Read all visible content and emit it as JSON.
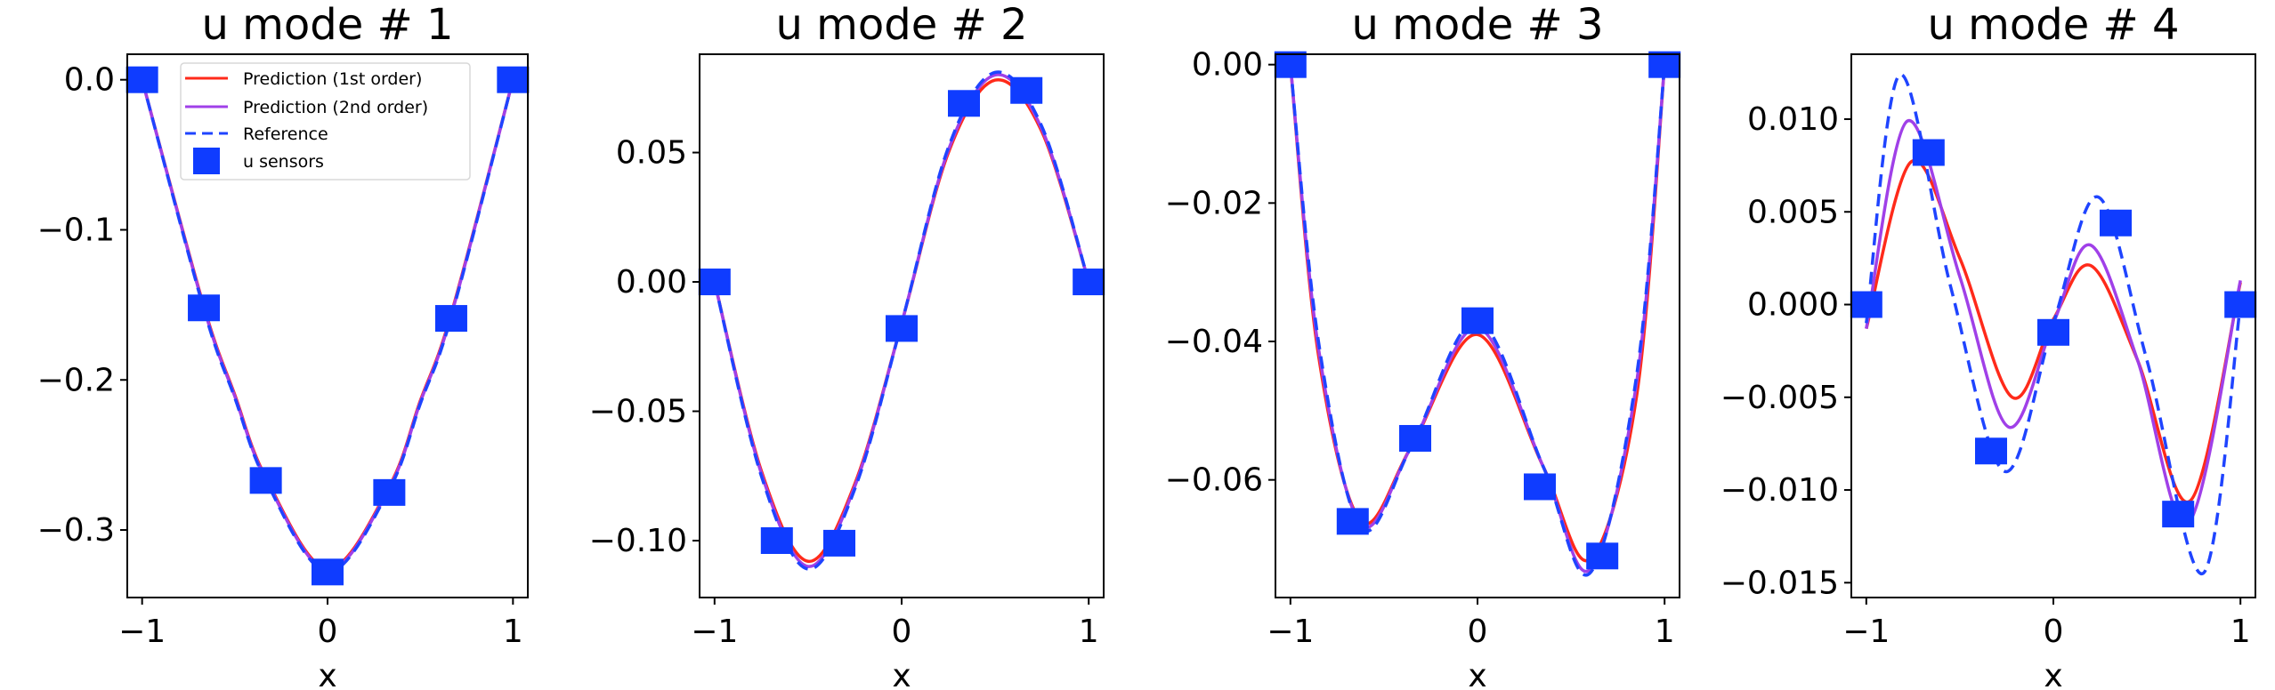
{
  "legend": {
    "pred1": "Prediction (1st order)",
    "pred2": "Prediction (2nd order)",
    "reference": "Reference",
    "sensors": "u sensors"
  },
  "colors": {
    "pred1": "#ff2a1a",
    "pred2": "#a040e8",
    "reference": "#1f44ff",
    "sensors": "#0f3cff"
  },
  "chart_data": [
    {
      "type": "line",
      "title": "u mode # 1",
      "xlabel": "x",
      "ylabel": "",
      "xlim": [
        -1.08,
        1.08
      ],
      "ylim": [
        -0.345,
        0.017
      ],
      "xticks": [
        -1,
        0,
        1
      ],
      "xtick_labels": [
        "−1",
        "0",
        "1"
      ],
      "yticks": [
        0.0,
        -0.1,
        -0.2,
        -0.3
      ],
      "ytick_labels": [
        "0.0",
        "−0.1",
        "−0.2",
        "−0.3"
      ],
      "legend": "top-right",
      "sensors": {
        "x": [
          -1,
          -0.667,
          -0.333,
          0,
          0.333,
          0.667,
          1
        ],
        "y": [
          0,
          -0.152,
          -0.267,
          -0.328,
          -0.275,
          -0.159,
          0
        ]
      },
      "series": [
        {
          "name": "Prediction (1st order)",
          "x": [
            -1,
            -0.667,
            -0.5,
            -0.333,
            0,
            0.333,
            0.5,
            0.667,
            1
          ],
          "y": [
            0,
            -0.151,
            -0.21,
            -0.265,
            -0.326,
            -0.271,
            -0.214,
            -0.156,
            0
          ]
        },
        {
          "name": "Prediction (2nd order)",
          "x": [
            -1,
            -0.667,
            -0.5,
            -0.333,
            0,
            0.333,
            0.5,
            0.667,
            1
          ],
          "y": [
            0,
            -0.152,
            -0.211,
            -0.266,
            -0.327,
            -0.272,
            -0.215,
            -0.157,
            0
          ]
        },
        {
          "name": "Reference",
          "x": [
            -1,
            -0.667,
            -0.5,
            -0.333,
            0,
            0.333,
            0.5,
            0.667,
            1
          ],
          "y": [
            0,
            -0.153,
            -0.212,
            -0.267,
            -0.328,
            -0.273,
            -0.216,
            -0.158,
            0
          ]
        }
      ]
    },
    {
      "type": "line",
      "title": "u mode # 2",
      "xlabel": "x",
      "ylabel": "",
      "xlim": [
        -1.08,
        1.08
      ],
      "ylim": [
        -0.122,
        0.088
      ],
      "xticks": [
        -1,
        0,
        1
      ],
      "xtick_labels": [
        "−1",
        "0",
        "1"
      ],
      "yticks": [
        0.05,
        0.0,
        -0.05,
        -0.1
      ],
      "ytick_labels": [
        "0.05",
        "0.00",
        "−0.05",
        "−0.10"
      ],
      "sensors": {
        "x": [
          -1,
          -0.667,
          -0.333,
          0,
          0.333,
          0.667,
          1
        ],
        "y": [
          0,
          -0.1,
          -0.101,
          -0.018,
          0.069,
          0.074,
          0
        ]
      },
      "series": [
        {
          "name": "Prediction (1st order)",
          "x": [
            -1,
            -0.75,
            -0.5,
            -0.25,
            0,
            0.25,
            0.5,
            0.75,
            1
          ],
          "y": [
            0,
            -0.073,
            -0.108,
            -0.078,
            -0.016,
            0.05,
            0.078,
            0.058,
            0
          ]
        },
        {
          "name": "Prediction (2nd order)",
          "x": [
            -1,
            -0.75,
            -0.5,
            -0.25,
            0,
            0.25,
            0.5,
            0.75,
            1
          ],
          "y": [
            0,
            -0.074,
            -0.11,
            -0.079,
            -0.016,
            0.051,
            0.08,
            0.059,
            0
          ]
        },
        {
          "name": "Reference",
          "x": [
            -1,
            -0.75,
            -0.5,
            -0.25,
            0,
            0.25,
            0.5,
            0.75,
            1
          ],
          "y": [
            0,
            -0.075,
            -0.111,
            -0.08,
            -0.016,
            0.052,
            0.081,
            0.06,
            0
          ]
        }
      ]
    },
    {
      "type": "line",
      "title": "u mode # 3",
      "xlabel": "x",
      "ylabel": "",
      "xlim": [
        -1.08,
        1.08
      ],
      "ylim": [
        -0.077,
        0.0015
      ],
      "xticks": [
        -1,
        0,
        1
      ],
      "xtick_labels": [
        "−1",
        "0",
        "1"
      ],
      "yticks": [
        0.0,
        -0.02,
        -0.04,
        -0.06
      ],
      "ytick_labels": [
        "0.00",
        "−0.02",
        "−0.04",
        "−0.06"
      ],
      "sensors": {
        "x": [
          -1,
          -0.667,
          -0.333,
          0,
          0.333,
          0.667,
          1
        ],
        "y": [
          0,
          -0.066,
          -0.054,
          -0.037,
          -0.061,
          -0.071,
          0
        ]
      },
      "series": [
        {
          "name": "Prediction (1st order)",
          "x": [
            -1,
            -0.85,
            -0.62,
            -0.35,
            0,
            0.35,
            0.6,
            0.85,
            1
          ],
          "y": [
            0,
            -0.042,
            -0.066,
            -0.055,
            -0.039,
            -0.058,
            -0.0715,
            -0.048,
            0
          ]
        },
        {
          "name": "Prediction (2nd order)",
          "x": [
            -1,
            -0.85,
            -0.62,
            -0.35,
            0,
            0.35,
            0.6,
            0.85,
            1
          ],
          "y": [
            0,
            -0.041,
            -0.0665,
            -0.055,
            -0.038,
            -0.058,
            -0.073,
            -0.046,
            0
          ]
        },
        {
          "name": "Reference",
          "x": [
            -1,
            -0.85,
            -0.62,
            -0.35,
            0,
            0.35,
            0.6,
            0.85,
            1
          ],
          "y": [
            0,
            -0.04,
            -0.067,
            -0.055,
            -0.037,
            -0.058,
            -0.0735,
            -0.045,
            0
          ]
        }
      ]
    },
    {
      "type": "line",
      "title": "u mode # 4",
      "xlabel": "x",
      "ylabel": "",
      "xlim": [
        -1.08,
        1.08
      ],
      "ylim": [
        -0.0158,
        0.0135
      ],
      "xticks": [
        -1,
        0,
        1
      ],
      "xtick_labels": [
        "−1",
        "0",
        "1"
      ],
      "yticks": [
        0.01,
        0.005,
        0.0,
        -0.005,
        -0.01,
        -0.015
      ],
      "ytick_labels": [
        "0.010",
        "0.005",
        "0.000",
        "−0.005",
        "−0.010",
        "−0.015"
      ],
      "sensors": {
        "x": [
          -1,
          -0.667,
          -0.333,
          0,
          0.333,
          0.667,
          1
        ],
        "y": [
          0,
          0.0082,
          -0.0079,
          -0.0015,
          0.0044,
          -0.0113,
          0
        ]
      },
      "series": [
        {
          "name": "Prediction (1st order)",
          "x": [
            -1,
            -0.76,
            -0.5,
            -0.22,
            0,
            0.2,
            0.45,
            0.73,
            1
          ],
          "y": [
            -0.0013,
            0.0077,
            0.0025,
            -0.005,
            -0.0008,
            0.0021,
            -0.003,
            -0.0106,
            0.0012
          ]
        },
        {
          "name": "Prediction (2nd order)",
          "x": [
            -1,
            -0.78,
            -0.5,
            -0.24,
            0,
            0.2,
            0.45,
            0.72,
            1
          ],
          "y": [
            -0.0013,
            0.0099,
            0.0015,
            -0.0066,
            -0.001,
            0.0032,
            -0.003,
            -0.0118,
            0.0013
          ]
        },
        {
          "name": "Reference",
          "x": [
            -1,
            -0.82,
            -0.55,
            -0.26,
            0,
            0.24,
            0.5,
            0.8,
            1
          ],
          "y": [
            -0.001,
            0.0124,
            0.001,
            -0.009,
            -0.001,
            0.0058,
            -0.003,
            -0.0145,
            0.0
          ]
        }
      ]
    }
  ]
}
